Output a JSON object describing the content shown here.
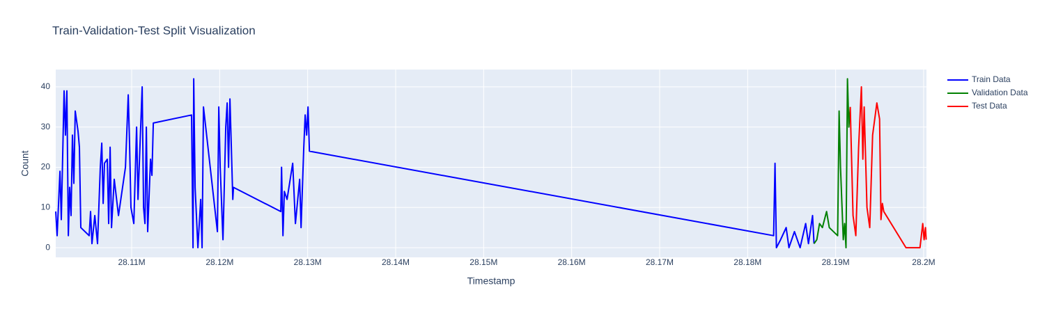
{
  "chart_data": {
    "type": "line",
    "title": "Train-Validation-Test Split Visualization",
    "x_label": "Timestamp",
    "y_label": "Count",
    "xlim": [
      28101370,
      28200320
    ],
    "ylim": [
      -2.4,
      44.3
    ],
    "xticks": [
      {
        "value": 28110000,
        "label": "28.11M"
      },
      {
        "value": 28120000,
        "label": "28.12M"
      },
      {
        "value": 28130000,
        "label": "28.13M"
      },
      {
        "value": 28140000,
        "label": "28.14M"
      },
      {
        "value": 28150000,
        "label": "28.15M"
      },
      {
        "value": 28160000,
        "label": "28.16M"
      },
      {
        "value": 28170000,
        "label": "28.17M"
      },
      {
        "value": 28180000,
        "label": "28.18M"
      },
      {
        "value": 28190000,
        "label": "28.19M"
      },
      {
        "value": 28200000,
        "label": "28.2M"
      }
    ],
    "yticks": [
      0,
      10,
      20,
      30,
      40
    ],
    "grid": true,
    "legend": "right",
    "series": [
      {
        "name": "Train Data",
        "color": "#0000ff",
        "x": [
          28101370,
          28101530,
          28101850,
          28102000,
          28102320,
          28102480,
          28102640,
          28102800,
          28102950,
          28103110,
          28103270,
          28103430,
          28103590,
          28103900,
          28104060,
          28104220,
          28105170,
          28105330,
          28105490,
          28105810,
          28106120,
          28106440,
          28106600,
          28106760,
          28106910,
          28107230,
          28107390,
          28107550,
          28107710,
          28108020,
          28108500,
          28109290,
          28109610,
          28109770,
          28109920,
          28110240,
          28110560,
          28110720,
          28111190,
          28111350,
          28111510,
          28111670,
          28111820,
          28112140,
          28112300,
          28112460,
          28116810,
          28116970,
          28117050,
          28117210,
          28117530,
          28117840,
          28118000,
          28118160,
          28119740,
          28119900,
          28120060,
          28120380,
          28120690,
          28120850,
          28121010,
          28121170,
          28121330,
          28121490,
          28121570,
          28126950,
          28127030,
          28127190,
          28127350,
          28127660,
          28128300,
          28128610,
          28129090,
          28129250,
          28129560,
          28129720,
          28129880,
          28130040,
          28130200,
          28182950,
          28183110,
          28183270,
          28183740,
          28184380,
          28184690,
          28185320,
          28185960,
          28186590,
          28186910,
          28187380,
          28187540
        ],
        "values": [
          9,
          3,
          19,
          7,
          39,
          28,
          39,
          3,
          15,
          8,
          28,
          16,
          34,
          29,
          25,
          5,
          3,
          9,
          1,
          8,
          1,
          20,
          26,
          11,
          21,
          22,
          6,
          25,
          5,
          17,
          8,
          20,
          38,
          25,
          10,
          6,
          30,
          12,
          40,
          10,
          6,
          30,
          4,
          22,
          18,
          31,
          33,
          0,
          42,
          15,
          0,
          12,
          0,
          35,
          4,
          35,
          20,
          2,
          30,
          36,
          20,
          37,
          25,
          12,
          15,
          9,
          20,
          3,
          14,
          12,
          21,
          6,
          17,
          5,
          25,
          33,
          28,
          35,
          24,
          3,
          21,
          0,
          2,
          5,
          0,
          4,
          0,
          6,
          1,
          8,
          1
        ]
      },
      {
        "name": "Validation Data",
        "color": "#008000",
        "x": [
          28187540,
          28187860,
          28188170,
          28188490,
          28188970,
          28189280,
          28190230,
          28190390,
          28190550,
          28190870,
          28191020,
          28191180,
          28191340,
          28191500,
          28191660
        ],
        "values": [
          1,
          2,
          6,
          5,
          9,
          5,
          3,
          34,
          20,
          2,
          6,
          0,
          42,
          30,
          35
        ]
      },
      {
        "name": "Test Data",
        "color": "#ff0000",
        "x": [
          28191660,
          28191980,
          28192290,
          28192610,
          28192930,
          28193090,
          28193240,
          28193560,
          28193880,
          28194200,
          28194680,
          28194990,
          28195150,
          28195310,
          28195470,
          28197990,
          28199580,
          28199740,
          28199900,
          28200050,
          28200210,
          28200290
        ],
        "values": [
          35,
          8,
          3,
          25,
          40,
          22,
          35,
          10,
          5,
          28,
          36,
          32,
          7,
          11,
          9,
          0,
          0,
          3,
          6,
          2,
          5,
          2
        ]
      }
    ]
  }
}
